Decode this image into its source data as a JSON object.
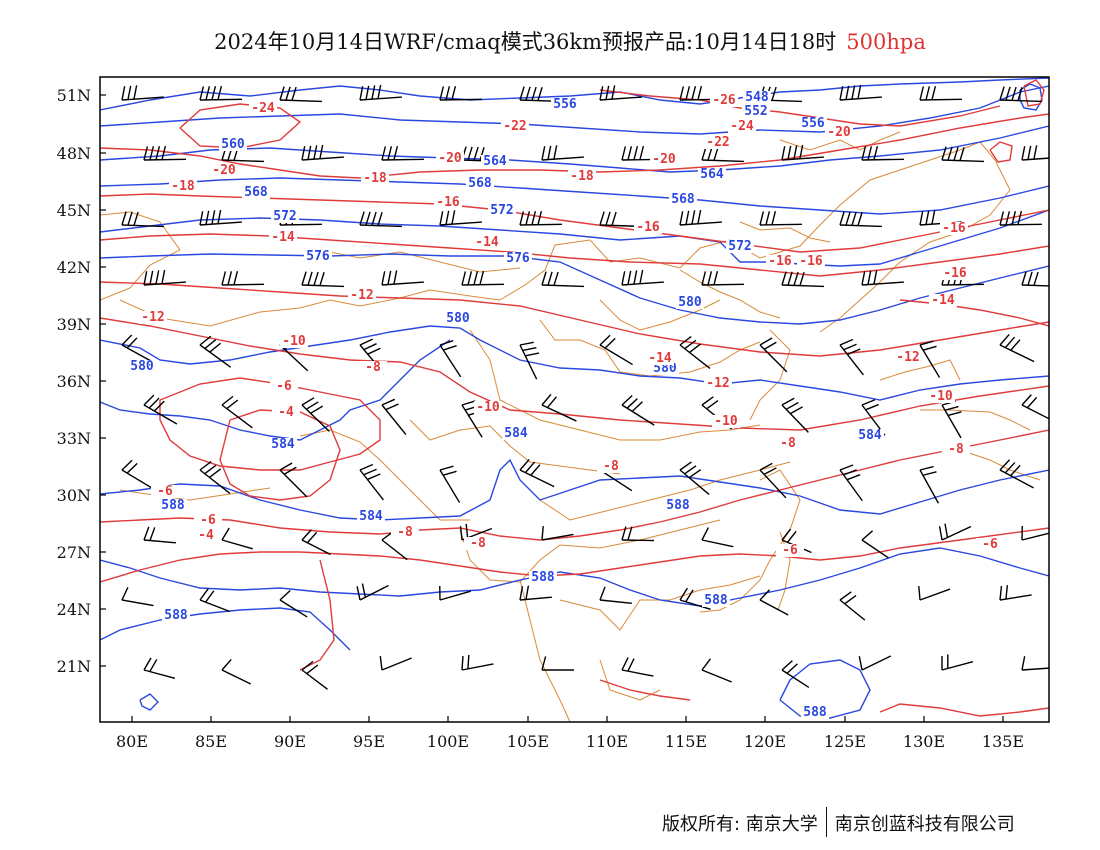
{
  "header": {
    "title": "2024年10月14日WRF/cmaq模式36km预报产品:10月14日18时",
    "level": "500hpa"
  },
  "colors": {
    "height_contour": "#2a48e0",
    "temperature_contour": "#e03a3a",
    "border": "#d98a3a",
    "wind_barb": "#000000"
  },
  "axes": {
    "lon_labels": [
      "80E",
      "85E",
      "90E",
      "95E",
      "100E",
      "105E",
      "110E",
      "115E",
      "120E",
      "125E",
      "130E",
      "135E"
    ],
    "lat_labels": [
      "51N",
      "48N",
      "45N",
      "42N",
      "39N",
      "36N",
      "33N",
      "30N",
      "27N",
      "24N",
      "21N"
    ]
  },
  "height_labels": [
    "556",
    "548",
    "552",
    "556",
    "560",
    "564",
    "564",
    "568",
    "568",
    "568",
    "572",
    "572",
    "572",
    "576",
    "576",
    "580",
    "580",
    "580",
    "580",
    "584",
    "584",
    "584",
    "584",
    "588",
    "588",
    "588",
    "588",
    "588",
    "588"
  ],
  "temperature_labels": [
    "-24",
    "-26",
    "-24",
    "-22",
    "-22",
    "-20",
    "-20",
    "-20",
    "-20",
    "-18",
    "-18",
    "-18",
    "-16",
    "-16",
    "-16",
    "-16",
    "-16",
    "-16",
    "-14",
    "-14",
    "-14",
    "-14",
    "-12",
    "-12",
    "-12",
    "-12",
    "-10",
    "-10",
    "-10",
    "-10",
    "-8",
    "-8",
    "-8",
    "-8",
    "-8",
    "-6",
    "-6",
    "-6",
    "-6",
    "-4",
    "-4",
    "-6",
    "-8"
  ],
  "copyright": {
    "left": "版权所有: 南京大学",
    "right": "南京创蓝科技有限公司"
  }
}
